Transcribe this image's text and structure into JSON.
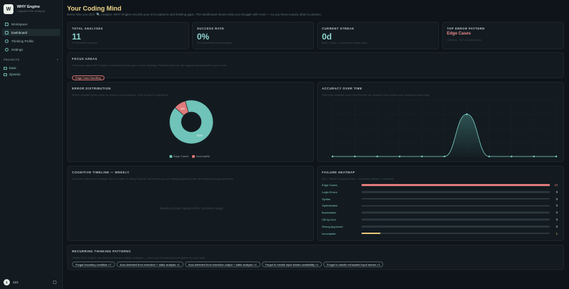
{
  "app": {
    "name": "WHY Engine",
    "tagline": "Cognitive Pain Analysis",
    "logo_letter": "W"
  },
  "nav": [
    {
      "label": "Workspace",
      "icon": "workspace-icon",
      "active": false
    },
    {
      "label": "Dashboard",
      "icon": "dashboard-icon",
      "active": true
    },
    {
      "label": "Thinking Profile",
      "icon": "profile-icon",
      "active": false
    },
    {
      "label": "Settings",
      "icon": "gear-icon",
      "active": false
    }
  ],
  "projects": {
    "header": "PROJECTS",
    "add_label": "+",
    "items": [
      "basic",
      "dynamic"
    ]
  },
  "user": {
    "initial": "1",
    "name": "123"
  },
  "page": {
    "title": "Your Coding Mind",
    "subtitle": "Every time you click “🔍 Analyze, WHY Engine records your error patterns and thinking gaps. This dashboard shows what you struggle with most — so you know exactly what to practice."
  },
  "stats": {
    "total": {
      "label": "TOTAL ANALYSES",
      "value": "11",
      "sub": "11 recorded analyses"
    },
    "success": {
      "label": "SUCCESS RATE",
      "value": "0%",
      "sub": "0% successful breakthroughs"
    },
    "streak": {
      "label": "CURRENT STREAK",
      "value": "0d",
      "sub": "Best: 0 days · consecutive active days"
    },
    "top_error": {
      "label": "TOP ERROR PATTERN",
      "value": "Edge Cases",
      "sub": "10 times · 91% of total errors"
    }
  },
  "focus": {
    "label": "FOCUS AREAS",
    "desc": "These are areas WHY Engine consistently finds gaps in your thinking. Prioritize these for the biggest improvement in your code.",
    "tags": [
      "Edge Case Handling"
    ]
  },
  "error_distribution": {
    "label": "ERROR DISTRIBUTION",
    "desc": "Which mistake types come up most in your analyses. Click a slice to highlight it.",
    "legend": [
      {
        "name": "Edge Cases",
        "color": "#6fc3b8"
      },
      {
        "name": "Incomplete",
        "color": "#e07a7a"
      }
    ]
  },
  "accuracy": {
    "label": "ACCURACY OVER TIME",
    "desc": "How your analysis score has trended. An upward trend means your thinking is improving."
  },
  "timeline": {
    "label": "COGNITIVE TIMELINE — WEEKLY",
    "desc": "How your skill scores change week to week. A rising “Overall” line means you are steadily getting better at thinking through problems.",
    "empty": "Weekly evolution appears after consistent usage"
  },
  "heatmap": {
    "label": "FAILURE HEATMAP",
    "desc": "Bar = failure frequency   Red = dominant, yellow = moderate"
  },
  "recurring": {
    "label": "RECURRING THINKING PATTERNS",
    "desc": "Habits WHY Engine has detected across multiple analyses — click one off reviewing that pattern in your code.",
    "pills": [
      "Forgot boundary condition ×7",
      "Auto-detected from execution + static analysis ×1",
      "Auto-detected from execution output + static analysis ×1",
      "Forgot to handle input stream availability ×1",
      "Forgot to handle exhausted input stream ×1"
    ]
  },
  "colors": {
    "accent": "#8ed6cf",
    "title": "#f1d78a",
    "danger": "#e07a7a",
    "warning": "#e9c27a"
  },
  "chart_data": [
    {
      "type": "pie",
      "title": "ERROR DISTRIBUTION",
      "categories": [
        "Edge Cases",
        "Incomplete"
      ],
      "values": [
        91,
        9
      ],
      "labels": [
        "91%",
        "9%"
      ],
      "colors": [
        "#6fc3b8",
        "#e07a7a"
      ],
      "legend": "bottom"
    },
    {
      "type": "area",
      "title": "ACCURACY OVER TIME",
      "x": [
        1,
        2,
        3,
        4,
        5,
        6,
        7,
        8,
        9,
        10,
        11
      ],
      "y": [
        0,
        0,
        0,
        0,
        0,
        0,
        3,
        0,
        0,
        0,
        0
      ],
      "ylim": [
        0,
        4
      ],
      "grid": true
    },
    {
      "type": "bar",
      "title": "FAILURE HEATMAP",
      "orientation": "horizontal",
      "categories": [
        "Edge Cases",
        "Logic Errors",
        "Syntax",
        "Optimization",
        "Boundaries",
        "Off-by-One",
        "Wrong Approach",
        "Incomplete"
      ],
      "values": [
        10,
        0,
        0,
        0,
        0,
        0,
        0,
        1
      ],
      "max": 10
    }
  ]
}
